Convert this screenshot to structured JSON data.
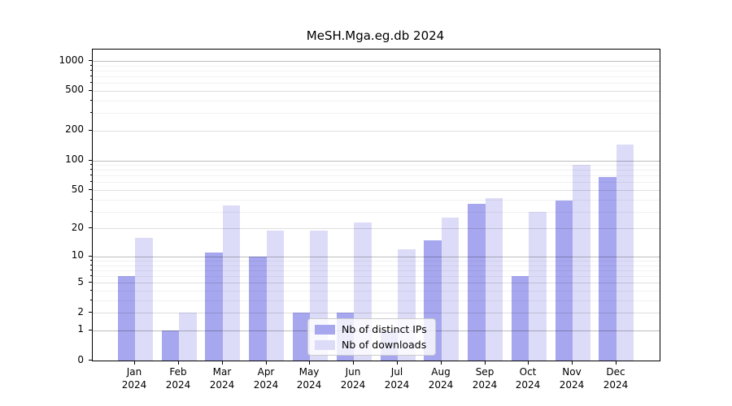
{
  "title": "MeSH.Mga.eg.db 2024",
  "chart_data": {
    "type": "bar",
    "title": "MeSH.Mga.eg.db 2024",
    "categories": [
      "Jan",
      "Feb",
      "Mar",
      "Apr",
      "May",
      "Jun",
      "Jul",
      "Aug",
      "Sep",
      "Oct",
      "Nov",
      "Dec"
    ],
    "xtick_year": "2024",
    "series": [
      {
        "name": "Nb of distinct IPs",
        "color": "#a7a7ef",
        "values": [
          6,
          1,
          11,
          10,
          2,
          2,
          1,
          15,
          36,
          6,
          39,
          68
        ]
      },
      {
        "name": "Nb of downloads",
        "color": "#dcdcf8",
        "values": [
          16,
          2,
          35,
          19,
          19,
          23,
          12,
          26,
          41,
          30,
          90,
          145
        ]
      }
    ],
    "yscale": "log1p",
    "yticks": [
      0,
      1,
      2,
      5,
      10,
      20,
      50,
      100,
      200,
      500,
      1000
    ],
    "yminor": [
      3,
      4,
      6,
      7,
      8,
      9,
      30,
      40,
      60,
      70,
      80,
      90,
      300,
      400,
      600,
      700,
      800,
      900
    ],
    "ylim": [
      0,
      1300
    ],
    "xlabel": "",
    "ylabel": "",
    "grid": true,
    "legend_position": "lower center"
  },
  "colors": {
    "grid_decade": "rgba(0,0,0,0.26)",
    "grid_labeled": "rgba(0,0,0,0.13)",
    "grid_minor": "rgba(0,0,0,0.055)",
    "axis": "#000000",
    "background": "#ffffff"
  }
}
